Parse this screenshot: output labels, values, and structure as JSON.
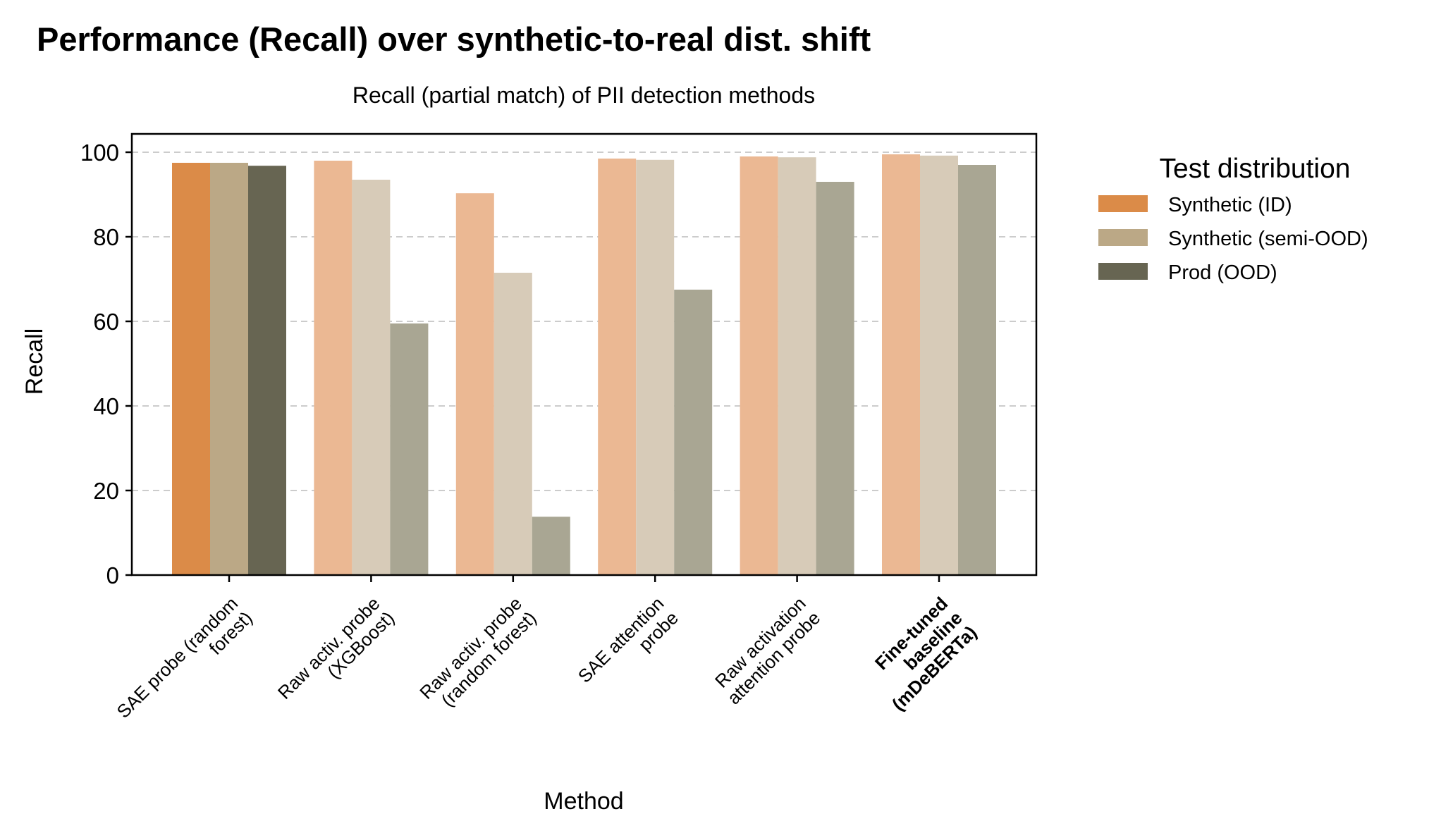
{
  "chart_data": {
    "type": "bar",
    "title": "Performance (Recall) over synthetic-to-real dist. shift",
    "subtitle": "Recall (partial match) of PII detection methods",
    "xlabel": "Method",
    "ylabel": "Recall",
    "ylim": [
      0,
      105
    ],
    "yticks": [
      0,
      20,
      40,
      60,
      80,
      100
    ],
    "grid": "horizontal dashed",
    "legend_title": "Test distribution",
    "legend_placement": "outside-right",
    "categories": [
      "SAE probe (random\nforest)",
      "Raw activ. probe\n(XGBoost)",
      "Raw activ. probe\n(random forest)",
      "SAE attention\nprobe",
      "Raw activation\nattention probe",
      "Fine-tuned\nbaseline\n(mDeBERTa)"
    ],
    "highlighted_category_index": 0,
    "bold_category_index": 5,
    "series": [
      {
        "name": "Synthetic (ID)",
        "color": "#DB8B48",
        "faded_color": "#EBB893",
        "values": [
          97.5,
          98.0,
          90.3,
          98.5,
          99.0,
          99.5
        ]
      },
      {
        "name": "Synthetic (semi-OOD)",
        "color": "#BBA886",
        "faded_color": "#D7CBB8",
        "values": [
          97.5,
          93.5,
          71.5,
          98.2,
          98.8,
          99.2
        ]
      },
      {
        "name": "Prod (OOD)",
        "color": "#676552",
        "faded_color": "#A9A693",
        "values": [
          96.8,
          59.5,
          13.8,
          67.5,
          93.0,
          97.0
        ]
      }
    ]
  }
}
